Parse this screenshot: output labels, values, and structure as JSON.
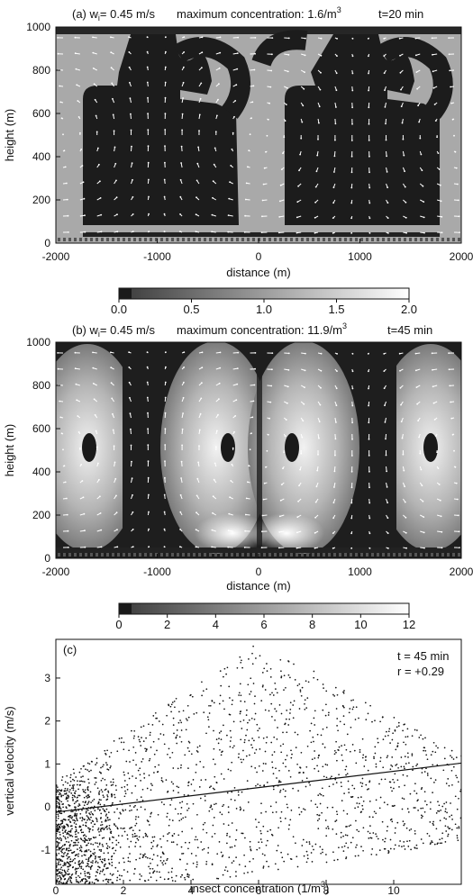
{
  "chart_data": [
    {
      "type": "heatmap",
      "panel": "(a)",
      "title_params": "(a) w",
      "title_sub": "i",
      "title_value": "= 0.45 m/s",
      "max_conc_text": "maximum concentration: 1.6/m",
      "max_conc_exp": "3",
      "time_text": "t=20 min",
      "xlabel": "distance (m)",
      "ylabel": "height (m)",
      "xlim": [
        -2000,
        2000
      ],
      "ylim": [
        0,
        1000
      ],
      "x_ticks": [
        -2000,
        -1000,
        0,
        1000,
        2000
      ],
      "x_tick_labels": [
        "-2000",
        "-1000",
        "0",
        "1000",
        "2000"
      ],
      "y_ticks": [
        0,
        200,
        400,
        600,
        800,
        1000
      ],
      "y_tick_labels": [
        "0",
        "200",
        "400",
        "600",
        "800",
        "1000"
      ],
      "colorbar": {
        "range": [
          0.0,
          2.0
        ],
        "ticks": [
          0.0,
          0.5,
          1.0,
          1.5,
          2.0
        ],
        "tick_labels": [
          "0.0",
          "0.5",
          "1.0",
          "1.5",
          "2.0"
        ]
      },
      "colormap": "black (low) to white (high)",
      "vector_field": true
    },
    {
      "type": "heatmap",
      "panel": "(b)",
      "title_params": "(b) w",
      "title_sub": "i",
      "title_value": "= 0.45 m/s",
      "max_conc_text": "maximum concentration: 11.9/m",
      "max_conc_exp": "3",
      "time_text": "t=45 min",
      "xlabel": "distance (m)",
      "ylabel": "height (m)",
      "xlim": [
        -2000,
        2000
      ],
      "ylim": [
        0,
        1000
      ],
      "x_ticks": [
        -2000,
        -1000,
        0,
        1000,
        2000
      ],
      "x_tick_labels": [
        "-2000",
        "-1000",
        "0",
        "1000",
        "2000"
      ],
      "y_ticks": [
        0,
        200,
        400,
        600,
        800,
        1000
      ],
      "y_tick_labels": [
        "0",
        "200",
        "400",
        "600",
        "800",
        "1000"
      ],
      "colorbar": {
        "range": [
          0,
          12
        ],
        "ticks": [
          0,
          2,
          4,
          6,
          8,
          10,
          12
        ],
        "tick_labels": [
          "0",
          "2",
          "4",
          "6",
          "8",
          "10",
          "12"
        ]
      },
      "colormap": "black (low) to white (high)",
      "vector_field": true
    },
    {
      "type": "scatter",
      "panel": "(c)",
      "panel_label": "(c)",
      "annotation_t": "t = 45 min",
      "annotation_r": "r = +0.29",
      "xlabel": "insect concentration (1/m",
      "xlabel_exp": "3",
      "xlabel_close": ")",
      "ylabel": "vertical velocity (m/s)",
      "xlim": [
        0,
        12
      ],
      "ylim": [
        -1.8,
        3.9
      ],
      "x_ticks": [
        0,
        2,
        4,
        6,
        8,
        10
      ],
      "x_tick_labels": [
        "0",
        "2",
        "4",
        "6",
        "8",
        "10"
      ],
      "y_ticks": [
        -1,
        0,
        1,
        2,
        3
      ],
      "y_tick_labels": [
        "-1",
        "0",
        "1",
        "2",
        "3"
      ],
      "regression_line": {
        "x": [
          0,
          12
        ],
        "y": [
          -0.12,
          1.02
        ]
      },
      "point_distribution": "dense cloud of ~2000 points; vertical velocity -1.8 to 3.9 m/s; concentration 0 to 12 per m3; envelope widens toward low concentration and narrows near 10-12"
    }
  ]
}
